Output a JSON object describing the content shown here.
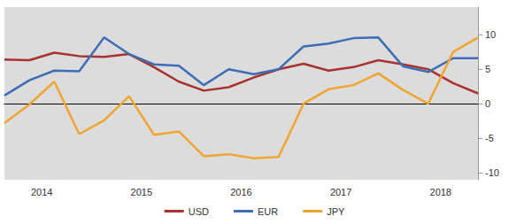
{
  "chart_data": {
    "type": "line",
    "categories": [
      null,
      "2014",
      null,
      null,
      null,
      "2015",
      null,
      null,
      null,
      "2016",
      null,
      null,
      null,
      "2017",
      null,
      null,
      null,
      "2018",
      null,
      null
    ],
    "series": [
      {
        "name": "USD",
        "color": "#a8322d",
        "values": [
          6.4,
          6.3,
          7.4,
          6.9,
          6.8,
          7.2,
          5.3,
          3.2,
          1.9,
          2.4,
          3.8,
          5.0,
          5.8,
          4.8,
          5.3,
          6.3,
          5.7,
          5.0,
          3.0,
          1.5
        ]
      },
      {
        "name": "EUR",
        "color": "#3d6db5",
        "values": [
          1.2,
          3.4,
          4.8,
          4.7,
          9.6,
          7.2,
          5.7,
          5.5,
          2.7,
          5.0,
          4.3,
          5.0,
          8.3,
          8.7,
          9.5,
          9.6,
          5.4,
          4.6,
          6.6,
          6.6
        ]
      },
      {
        "name": "JPY",
        "color": "#f0a530",
        "values": [
          -2.8,
          -0.1,
          3.2,
          -4.4,
          -2.4,
          1.1,
          -4.5,
          -4.0,
          -7.6,
          -7.3,
          -7.9,
          -7.7,
          0.0,
          2.1,
          2.7,
          4.4,
          2.0,
          0.0,
          7.5,
          9.6
        ]
      }
    ],
    "ylim": [
      -11,
      14
    ],
    "yticks": [
      -10,
      -5,
      0,
      5,
      10
    ],
    "grid": false,
    "legend": "bottom"
  }
}
